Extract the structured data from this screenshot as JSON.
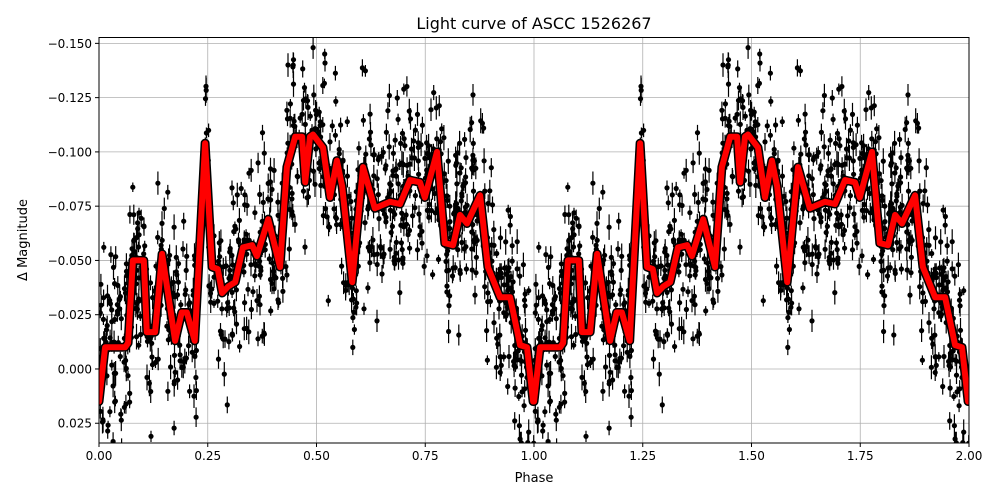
{
  "chart_data": {
    "type": "scatter",
    "title": "Light curve of ASCC 1526267",
    "xlabel": "Phase",
    "ylabel": "Δ Magnitude",
    "xlim": [
      0.0,
      2.0
    ],
    "ylim": [
      -0.1527,
      0.0341
    ],
    "y_inverted": true,
    "grid": true,
    "xticks": [
      "0.00",
      "0.25",
      "0.50",
      "0.75",
      "1.00",
      "1.25",
      "1.50",
      "1.75",
      "2.00"
    ],
    "yticks": [
      "−0.150",
      "−0.125",
      "−0.100",
      "−0.075",
      "−0.050",
      "−0.025",
      "0.000",
      "0.025"
    ],
    "xtick_values": [
      0,
      0.25,
      0.5,
      0.75,
      1,
      1.25,
      1.5,
      1.75,
      2
    ],
    "ytick_values": [
      -0.15,
      -0.125,
      -0.1,
      -0.075,
      -0.05,
      -0.025,
      0,
      0.025
    ],
    "series": [
      {
        "type": "errorbar-scatter",
        "color": "#000000",
        "description_visible": "observations with vertical error bars, repeated over two phase cycles"
      },
      {
        "type": "line",
        "color": "#ff0000",
        "outline": "#000000",
        "repeat_period": 1.0,
        "x": [
          0.0,
          0.014,
          0.06,
          0.067,
          0.078,
          0.103,
          0.11,
          0.129,
          0.145,
          0.175,
          0.19,
          0.202,
          0.22,
          0.244,
          0.26,
          0.273,
          0.283,
          0.297,
          0.313,
          0.331,
          0.352,
          0.363,
          0.389,
          0.416,
          0.432,
          0.451,
          0.467,
          0.474,
          0.485,
          0.492,
          0.515,
          0.531,
          0.547,
          0.559,
          0.582,
          0.607,
          0.634,
          0.669,
          0.692,
          0.715,
          0.738,
          0.749,
          0.777,
          0.795,
          0.814,
          0.83,
          0.846,
          0.876,
          0.894,
          0.922,
          0.945,
          0.968,
          0.984,
          0.998
        ],
        "y": [
          0.015,
          -0.01,
          -0.01,
          -0.012,
          -0.05,
          -0.05,
          -0.017,
          -0.017,
          -0.053,
          -0.013,
          -0.026,
          -0.026,
          -0.013,
          -0.104,
          -0.047,
          -0.046,
          -0.035,
          -0.038,
          -0.04,
          -0.056,
          -0.057,
          -0.052,
          -0.069,
          -0.047,
          -0.093,
          -0.107,
          -0.107,
          -0.086,
          -0.107,
          -0.108,
          -0.102,
          -0.079,
          -0.096,
          -0.084,
          -0.04,
          -0.093,
          -0.074,
          -0.077,
          -0.076,
          -0.087,
          -0.086,
          -0.079,
          -0.1,
          -0.058,
          -0.057,
          -0.071,
          -0.067,
          -0.08,
          -0.047,
          -0.033,
          -0.033,
          -0.011,
          -0.01,
          0.015
        ]
      }
    ]
  }
}
